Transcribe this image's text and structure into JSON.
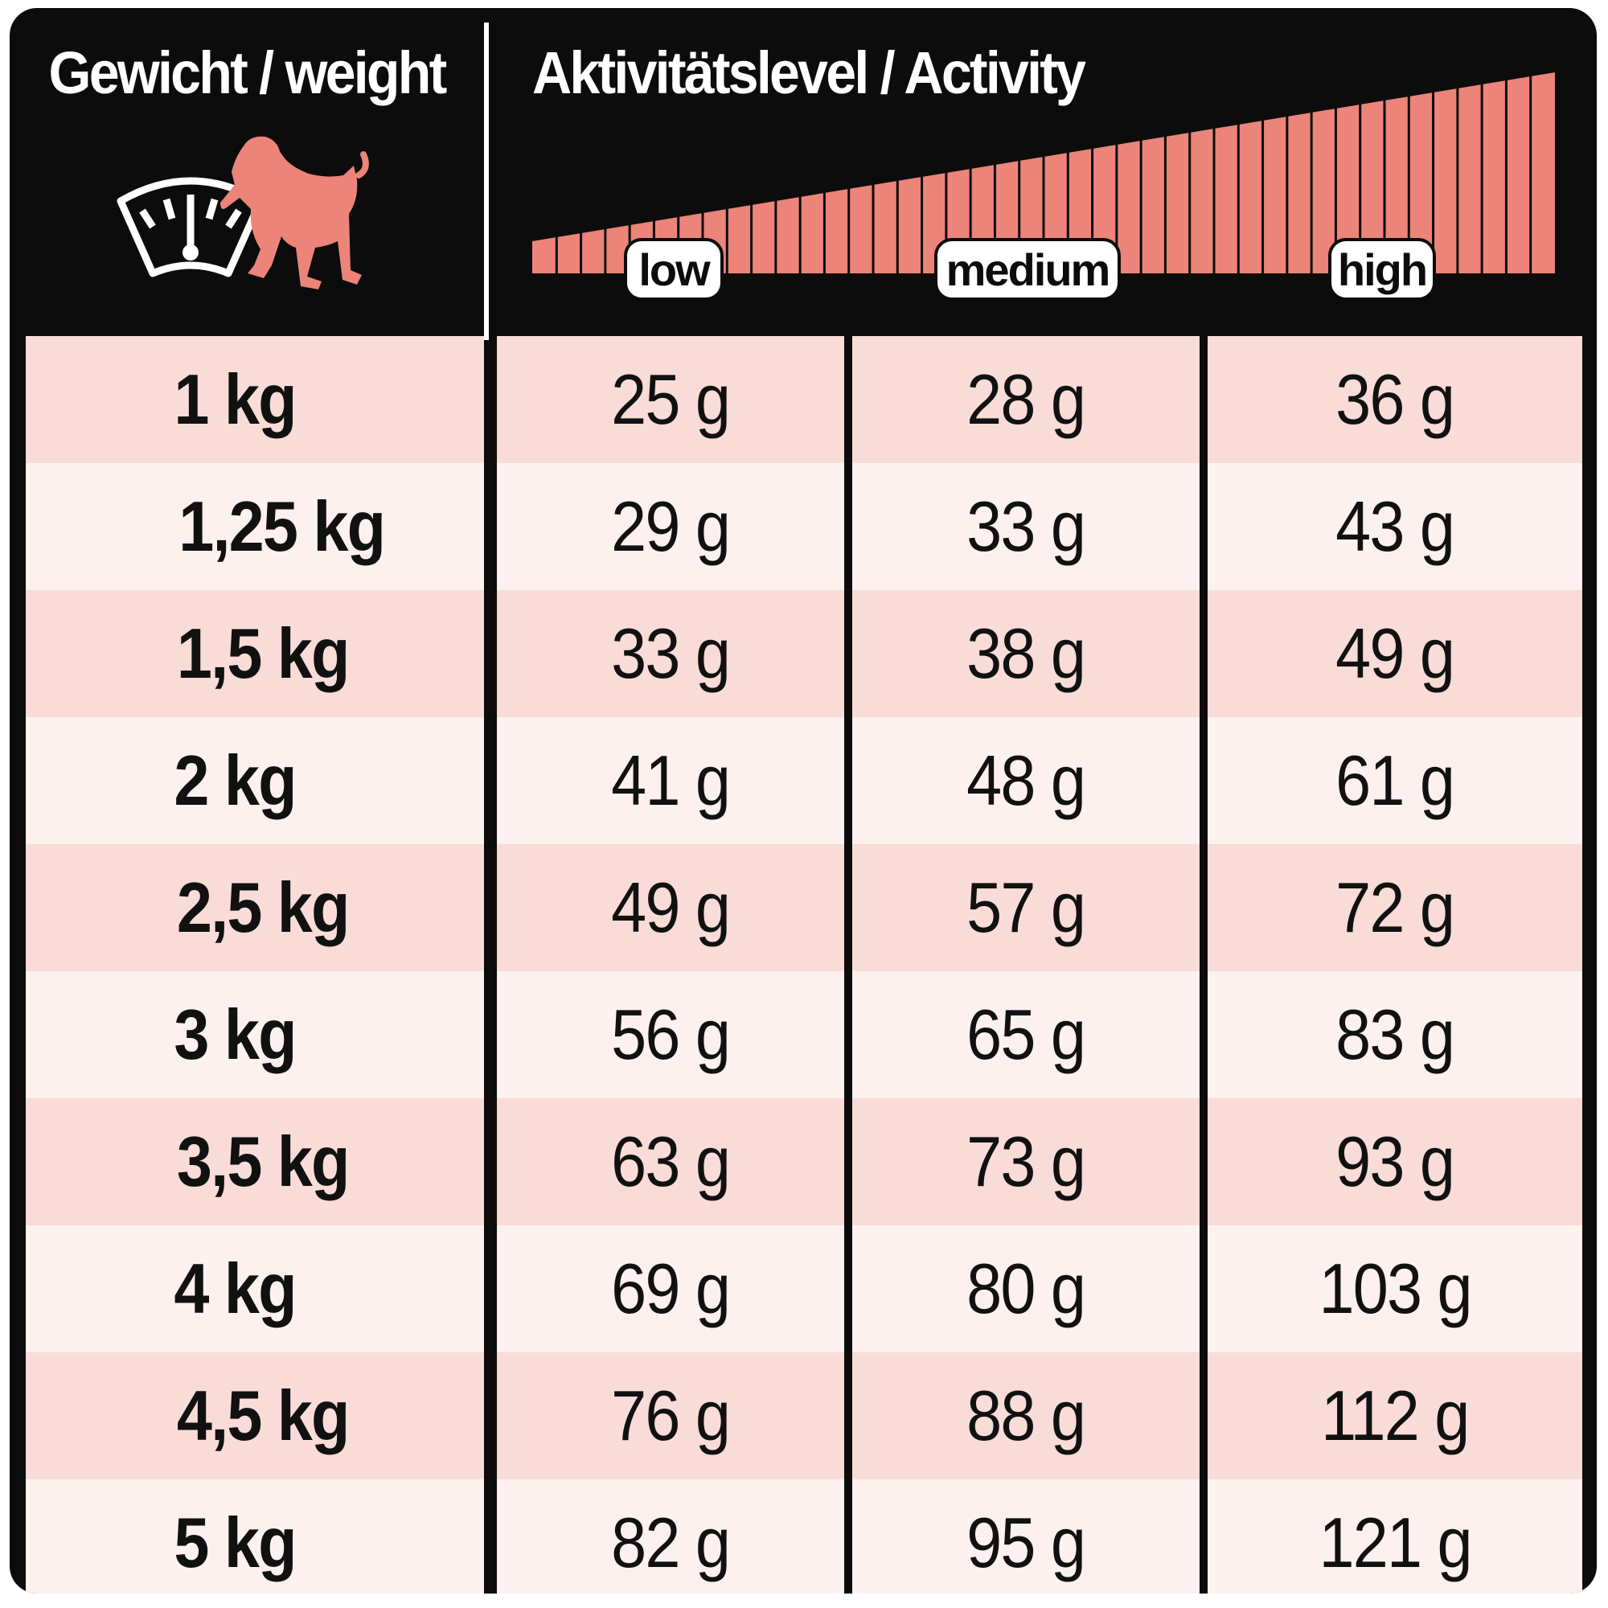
{
  "header": {
    "weight_title": "Gewicht / weight",
    "activity_title": "Aktivitätslevel / Activity",
    "levels": [
      "low",
      "medium",
      "high"
    ],
    "icon": "scale-with-dog-icon",
    "colors": {
      "background": "#0c0c0c",
      "accent": "#ec8479",
      "row_dark": "#f9dcd7",
      "row_light": "#fdf1ef"
    }
  },
  "table": {
    "columns": [
      "weight",
      "low",
      "medium",
      "high"
    ],
    "rows": [
      {
        "weight": "1 kg",
        "low": "25 g",
        "medium": "28 g",
        "high": "36 g"
      },
      {
        "weight": "1,25 kg",
        "low": "29 g",
        "medium": "33 g",
        "high": "43 g"
      },
      {
        "weight": "1,5 kg",
        "low": "33 g",
        "medium": "38 g",
        "high": "49 g"
      },
      {
        "weight": "2 kg",
        "low": "41 g",
        "medium": "48 g",
        "high": "61 g"
      },
      {
        "weight": "2,5 kg",
        "low": "49 g",
        "medium": "57 g",
        "high": "72 g"
      },
      {
        "weight": "3 kg",
        "low": "56 g",
        "medium": "65 g",
        "high": "83 g"
      },
      {
        "weight": "3,5 kg",
        "low": "63 g",
        "medium": "73 g",
        "high": "93 g"
      },
      {
        "weight": "4 kg",
        "low": "69 g",
        "medium": "80 g",
        "high": "103 g"
      },
      {
        "weight": "4,5 kg",
        "low": "76 g",
        "medium": "88 g",
        "high": "112 g"
      },
      {
        "weight": "5 kg",
        "low": "82 g",
        "medium": "95 g",
        "high": "121 g"
      }
    ]
  }
}
